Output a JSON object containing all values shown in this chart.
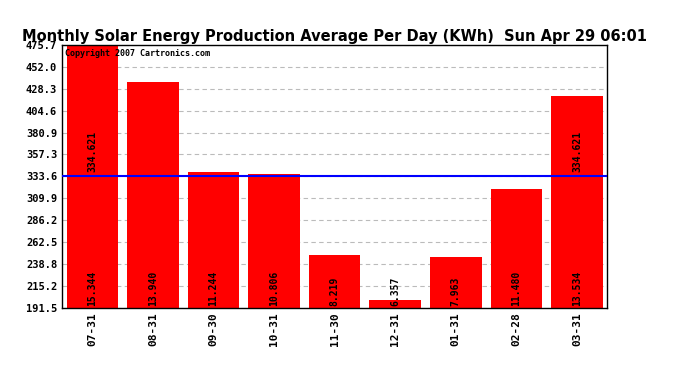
{
  "title": "Monthly Solar Energy Production Average Per Day (KWh)  Sun Apr 29 06:01",
  "copyright": "Copyright 2007 Cartronics.com",
  "categories": [
    "07-31",
    "08-31",
    "09-30",
    "10-31",
    "11-30",
    "12-31",
    "01-31",
    "02-28",
    "03-31"
  ],
  "values": [
    475.7,
    436.0,
    338.0,
    336.0,
    248.0,
    200.0,
    246.0,
    320.0,
    420.0
  ],
  "bar_labels": [
    "15.344",
    "13.940",
    "11.244",
    "10.806",
    "8.219",
    "6.357",
    "7.963",
    "11.480",
    "13.534"
  ],
  "inside_labels": [
    "334.621",
    "",
    "",
    "",
    "",
    "",
    "",
    "",
    "334.621"
  ],
  "avg_line": 333.6,
  "bar_color": "#FF0000",
  "avg_line_color": "#0000FF",
  "background_color": "#FFFFFF",
  "plot_bg_color": "#FFFFFF",
  "grid_color": "#BBBBBB",
  "title_fontsize": 10.5,
  "ytick_labels": [
    "475.7",
    "452.0",
    "428.3",
    "404.6",
    "380.9",
    "357.3",
    "333.6",
    "309.9",
    "286.2",
    "262.5",
    "238.8",
    "215.2",
    "191.5"
  ],
  "ytick_values": [
    475.7,
    452.0,
    428.3,
    404.6,
    380.9,
    357.3,
    333.6,
    309.9,
    286.2,
    262.5,
    238.8,
    215.2,
    191.5
  ],
  "ymin": 191.5,
  "ymax": 475.7
}
